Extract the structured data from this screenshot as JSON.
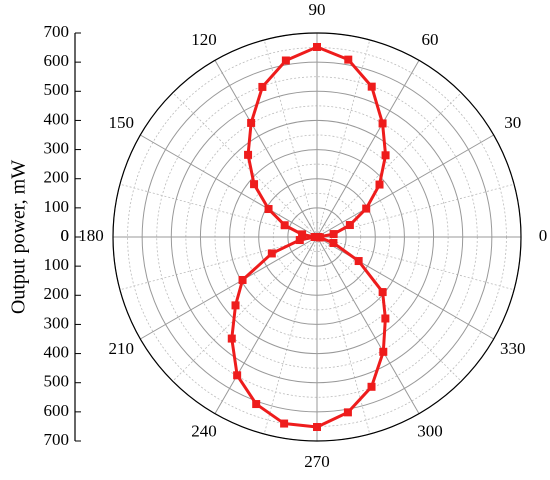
{
  "chart_data": {
    "type": "polar",
    "y_label": "Output power, mW",
    "theta": [
      0,
      10,
      20,
      30,
      40,
      50,
      60,
      70,
      80,
      90,
      100,
      110,
      120,
      130,
      140,
      150,
      160,
      170,
      180,
      190,
      200,
      210,
      220,
      230,
      240,
      250,
      260,
      270,
      280,
      290,
      300,
      310,
      320,
      330,
      340,
      350
    ],
    "values": [
      5,
      58,
      120,
      195,
      280,
      366,
      450,
      549,
      618,
      652,
      615,
      548,
      452,
      368,
      282,
      192,
      118,
      52,
      8,
      60,
      165,
      295,
      365,
      455,
      548,
      610,
      650,
      652,
      611,
      547,
      455,
      365,
      294,
      165,
      60,
      10
    ],
    "color": "#ee1c1c",
    "thetaticks": [
      0,
      30,
      60,
      90,
      120,
      150,
      180,
      210,
      240,
      270,
      300,
      330
    ],
    "rlim": [
      0,
      700
    ],
    "rticks": [
      0,
      100,
      200,
      300,
      400,
      500,
      600,
      700
    ],
    "grid": true
  }
}
